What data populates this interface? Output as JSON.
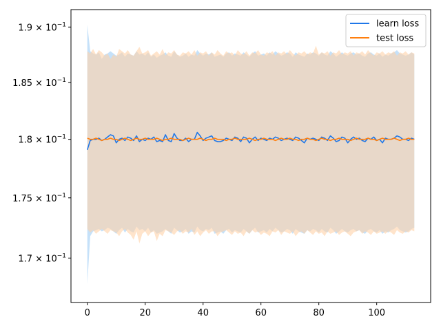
{
  "chart_data": {
    "type": "line",
    "title": "",
    "xlabel": "",
    "ylabel": "",
    "xlim": [
      -5.65,
      118.65
    ],
    "ylim": [
      0.1664,
      0.1916
    ],
    "yscale": "log",
    "grid": false,
    "legend_position": "top-right",
    "x_ticks": [
      0,
      20,
      40,
      60,
      80,
      100
    ],
    "x_tick_labels": [
      "0",
      "20",
      "40",
      "60",
      "80",
      "100"
    ],
    "y_ticks": [
      0.17,
      0.175,
      0.18,
      0.185,
      0.19
    ],
    "y_tick_labels": [
      {
        "mantissa": "1.7",
        "base": "10",
        "exp": "−1"
      },
      {
        "mantissa": "1.75",
        "base": "10",
        "exp": "−1"
      },
      {
        "mantissa": "1.8",
        "base": "10",
        "exp": "−1"
      },
      {
        "mantissa": "1.85",
        "base": "10",
        "exp": "−1"
      },
      {
        "mantissa": "1.9",
        "base": "10",
        "exp": "−1"
      }
    ],
    "series": [
      {
        "name": "learn loss",
        "color": "#1f77e8",
        "band_color": "#9fcdf5",
        "x_start": 0,
        "x_step": 1,
        "mean": [
          0.1791,
          0.1799,
          0.18,
          0.18,
          0.1801,
          0.1799,
          0.18,
          0.1802,
          0.1804,
          0.1803,
          0.1797,
          0.18,
          0.1801,
          0.1799,
          0.1802,
          0.1801,
          0.1799,
          0.1803,
          0.1798,
          0.18,
          0.1799,
          0.1801,
          0.18,
          0.1802,
          0.1798,
          0.1799,
          0.1798,
          0.1804,
          0.1799,
          0.1798,
          0.1805,
          0.1801,
          0.1799,
          0.1799,
          0.1801,
          0.1798,
          0.18,
          0.18,
          0.1806,
          0.1803,
          0.1799,
          0.1801,
          0.1802,
          0.1803,
          0.1799,
          0.1798,
          0.1798,
          0.1799,
          0.1801,
          0.18,
          0.1799,
          0.1802,
          0.1801,
          0.1798,
          0.1802,
          0.1801,
          0.1797,
          0.18,
          0.1802,
          0.1799,
          0.1801,
          0.18,
          0.1799,
          0.1801,
          0.18,
          0.1802,
          0.1801,
          0.1799,
          0.18,
          0.1801,
          0.18,
          0.1799,
          0.1802,
          0.1801,
          0.1799,
          0.1797,
          0.1801,
          0.18,
          0.1801,
          0.18,
          0.1799,
          0.1802,
          0.1801,
          0.1799,
          0.1803,
          0.1801,
          0.1798,
          0.1799,
          0.1802,
          0.1801,
          0.1797,
          0.18,
          0.1802,
          0.18,
          0.1801,
          0.1799,
          0.1798,
          0.1801,
          0.18,
          0.1802,
          0.1799,
          0.18,
          0.1797,
          0.1801,
          0.18,
          0.18,
          0.1801,
          0.1803,
          0.1802,
          0.18,
          0.18,
          0.1799,
          0.1801,
          0.18
        ],
        "lower": [
          0.1679,
          0.1718,
          0.1722,
          0.1723,
          0.1724,
          0.1722,
          0.1723,
          0.1725,
          0.1724,
          0.1722,
          0.172,
          0.1723,
          0.1725,
          0.1721,
          0.1724,
          0.1722,
          0.1721,
          0.1726,
          0.1723,
          0.1724,
          0.1722,
          0.1725,
          0.1721,
          0.1723,
          0.172,
          0.1721,
          0.1722,
          0.1724,
          0.1722,
          0.172,
          0.1725,
          0.1723,
          0.1721,
          0.1722,
          0.1724,
          0.172,
          0.1722,
          0.1721,
          0.1726,
          0.1723,
          0.1722,
          0.1724,
          0.1723,
          0.1725,
          0.172,
          0.1721,
          0.1722,
          0.172,
          0.1723,
          0.1724,
          0.1721,
          0.1723,
          0.1722,
          0.1721,
          0.1724,
          0.1722,
          0.172,
          0.1723,
          0.1725,
          0.1721,
          0.1722,
          0.1723,
          0.1721,
          0.1724,
          0.1722,
          0.1725,
          0.1723,
          0.1721,
          0.1722,
          0.1724,
          0.1723,
          0.172,
          0.1724,
          0.1722,
          0.1721,
          0.172,
          0.1723,
          0.1722,
          0.1724,
          0.1723,
          0.1721,
          0.1724,
          0.1722,
          0.1721,
          0.1725,
          0.1723,
          0.172,
          0.1722,
          0.1724,
          0.1722,
          0.1721,
          0.1723,
          0.1724,
          0.1722,
          0.1723,
          0.1721,
          0.172,
          0.1723,
          0.1724,
          0.1722,
          0.1721,
          0.1723,
          0.172,
          0.1722,
          0.1721,
          0.1723,
          0.1724,
          0.1726,
          0.1723,
          0.1722,
          0.1721,
          0.1722,
          0.1724,
          0.1725
        ],
        "upper": [
          0.1902,
          0.1878,
          0.1876,
          0.1875,
          0.1877,
          0.1871,
          0.1875,
          0.1876,
          0.1878,
          0.1876,
          0.1874,
          0.1875,
          0.1877,
          0.1873,
          0.1876,
          0.1875,
          0.1874,
          0.1878,
          0.1875,
          0.1876,
          0.1874,
          0.1877,
          0.1873,
          0.1875,
          0.1872,
          0.1874,
          0.1875,
          0.1877,
          0.1874,
          0.1873,
          0.1878,
          0.1875,
          0.1873,
          0.1874,
          0.1876,
          0.1873,
          0.1875,
          0.1874,
          0.1879,
          0.1876,
          0.1874,
          0.1876,
          0.1875,
          0.1877,
          0.1873,
          0.1874,
          0.1875,
          0.1873,
          0.1876,
          0.1877,
          0.1874,
          0.1876,
          0.1875,
          0.1874,
          0.1877,
          0.1875,
          0.1873,
          0.1876,
          0.1878,
          0.1874,
          0.1875,
          0.1876,
          0.1874,
          0.1877,
          0.1875,
          0.1878,
          0.1876,
          0.1874,
          0.1875,
          0.1877,
          0.1876,
          0.1873,
          0.1877,
          0.1875,
          0.1874,
          0.1873,
          0.1876,
          0.1875,
          0.1877,
          0.1876,
          0.1874,
          0.1877,
          0.1875,
          0.1874,
          0.1878,
          0.1876,
          0.1873,
          0.1875,
          0.1877,
          0.1875,
          0.1874,
          0.1876,
          0.1877,
          0.1875,
          0.1876,
          0.1874,
          0.1873,
          0.1876,
          0.1877,
          0.1875,
          0.1874,
          0.1876,
          0.1873,
          0.1875,
          0.1874,
          0.1876,
          0.1877,
          0.1879,
          0.1876,
          0.1875,
          0.1874,
          0.1875,
          0.1877,
          0.1875
        ]
      },
      {
        "name": "test loss",
        "color": "#ff7f0e",
        "band_color": "#ffd2a8",
        "x_start": 0,
        "x_step": 1,
        "mean": [
          0.1801,
          0.18,
          0.18,
          0.1801,
          0.18,
          0.1799,
          0.18,
          0.18,
          0.1801,
          0.18,
          0.18,
          0.1799,
          0.18,
          0.1801,
          0.18,
          0.1799,
          0.18,
          0.1801,
          0.18,
          0.18,
          0.1801,
          0.18,
          0.18,
          0.18,
          0.1801,
          0.18,
          0.1799,
          0.18,
          0.18,
          0.1801,
          0.18,
          0.18,
          0.18,
          0.1799,
          0.18,
          0.1801,
          0.18,
          0.18,
          0.18,
          0.1801,
          0.18,
          0.1799,
          0.18,
          0.18,
          0.1801,
          0.18,
          0.18,
          0.18,
          0.1799,
          0.18,
          0.18,
          0.1801,
          0.18,
          0.18,
          0.18,
          0.18,
          0.1801,
          0.18,
          0.1799,
          0.18,
          0.18,
          0.1801,
          0.18,
          0.18,
          0.18,
          0.1799,
          0.18,
          0.1801,
          0.18,
          0.18,
          0.1801,
          0.18,
          0.18,
          0.1799,
          0.18,
          0.18,
          0.1801,
          0.18,
          0.18,
          0.1799,
          0.18,
          0.1801,
          0.18,
          0.18,
          0.1799,
          0.18,
          0.18,
          0.1801,
          0.18,
          0.18,
          0.18,
          0.1799,
          0.18,
          0.1801,
          0.18,
          0.18,
          0.18,
          0.1801,
          0.18,
          0.18,
          0.1799,
          0.18,
          0.1801,
          0.18,
          0.18,
          0.18,
          0.1801,
          0.18,
          0.1799,
          0.18,
          0.18,
          0.1801,
          0.18,
          0.18
        ],
        "lower": [
          0.1724,
          0.1721,
          0.1723,
          0.172,
          0.1722,
          0.1724,
          0.1722,
          0.172,
          0.1723,
          0.1722,
          0.1721,
          0.1718,
          0.1722,
          0.1724,
          0.1721,
          0.1719,
          0.1715,
          0.1722,
          0.1712,
          0.172,
          0.1722,
          0.1718,
          0.1721,
          0.1722,
          0.1714,
          0.172,
          0.1718,
          0.1723,
          0.1722,
          0.1721,
          0.1719,
          0.1722,
          0.1723,
          0.172,
          0.1722,
          0.1721,
          0.1724,
          0.1719,
          0.1722,
          0.1718,
          0.1721,
          0.1723,
          0.172,
          0.1722,
          0.1722,
          0.1718,
          0.1721,
          0.1722,
          0.1723,
          0.1721,
          0.1719,
          0.1722,
          0.172,
          0.1721,
          0.1718,
          0.1722,
          0.172,
          0.1723,
          0.1721,
          0.1722,
          0.1719,
          0.1721,
          0.172,
          0.1718,
          0.1722,
          0.1721,
          0.1723,
          0.1719,
          0.1722,
          0.1721,
          0.172,
          0.1722,
          0.1718,
          0.1721,
          0.1722,
          0.172,
          0.1723,
          0.1721,
          0.1719,
          0.1722,
          0.172,
          0.1721,
          0.1718,
          0.1722,
          0.172,
          0.1721,
          0.1722,
          0.1719,
          0.1721,
          0.1722,
          0.172,
          0.1718,
          0.1721,
          0.1722,
          0.1723,
          0.172,
          0.1722,
          0.1721,
          0.1719,
          0.1722,
          0.172,
          0.1721,
          0.1722,
          0.172,
          0.1722,
          0.1721,
          0.1719,
          0.1723,
          0.1721,
          0.172,
          0.1722,
          0.1721,
          0.1723,
          0.1722
        ],
        "upper": [
          0.1878,
          0.1876,
          0.188,
          0.1875,
          0.1879,
          0.1877,
          0.1874,
          0.1876,
          0.1871,
          0.1875,
          0.1873,
          0.188,
          0.1878,
          0.1876,
          0.1879,
          0.1875,
          0.1874,
          0.1878,
          0.1882,
          0.1876,
          0.1877,
          0.1879,
          0.1874,
          0.1876,
          0.1878,
          0.1875,
          0.188,
          0.1874,
          0.1877,
          0.1876,
          0.1879,
          0.1875,
          0.1874,
          0.1877,
          0.1876,
          0.1878,
          0.1875,
          0.1879,
          0.1874,
          0.1877,
          0.1876,
          0.1878,
          0.1874,
          0.1877,
          0.1875,
          0.1879,
          0.1876,
          0.1874,
          0.1878,
          0.1876,
          0.1877,
          0.1874,
          0.1879,
          0.1876,
          0.1875,
          0.1878,
          0.1874,
          0.1877,
          0.1876,
          0.1879,
          0.1875,
          0.1874,
          0.1877,
          0.1876,
          0.1878,
          0.1874,
          0.1877,
          0.1876,
          0.1878,
          0.1875,
          0.1879,
          0.1876,
          0.1874,
          0.1877,
          0.1876,
          0.1878,
          0.1875,
          0.1877,
          0.1876,
          0.1883,
          0.1875,
          0.1877,
          0.1876,
          0.1878,
          0.1874,
          0.1877,
          0.1876,
          0.1879,
          0.1875,
          0.1877,
          0.1876,
          0.1878,
          0.1874,
          0.1877,
          0.1876,
          0.1878,
          0.1875,
          0.1879,
          0.1876,
          0.1874,
          0.1877,
          0.1876,
          0.1878,
          0.1875,
          0.1877,
          0.1876,
          0.1878,
          0.1874,
          0.1877,
          0.1876,
          0.1878,
          0.1875,
          0.1877,
          0.1876
        ]
      }
    ]
  }
}
